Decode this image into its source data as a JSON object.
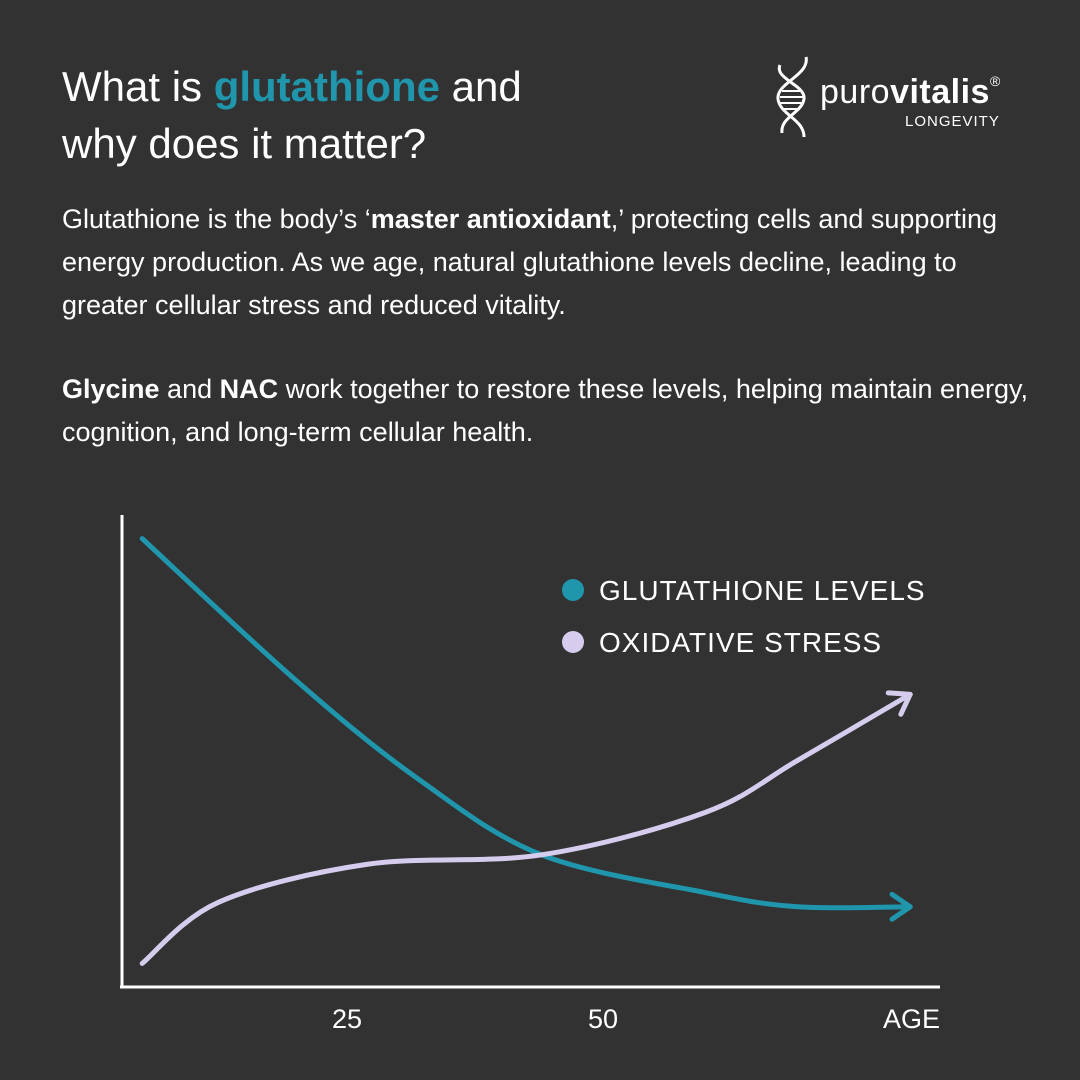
{
  "header": {
    "title_part1": "What is ",
    "title_highlight": "glutathione",
    "title_part2": " and",
    "title_line2": "why does it matter?"
  },
  "logo": {
    "brand_light": "puro",
    "brand_bold": "vitalis",
    "registered": "®",
    "tagline": "LONGEVITY"
  },
  "body": {
    "p1_a": "Glutathione is the body’s ‘",
    "p1_bold": "master antioxidant",
    "p1_b": ",’ protecting cells and supporting energy production. As we age, natural glutathione levels decline, leading to greater cellular stress and reduced vitality.",
    "p2_bold1": "Glycine",
    "p2_a": " and ",
    "p2_bold2": "NAC",
    "p2_b": " work together to restore these levels, helping maintain energy, cognition, and long-term cellular health."
  },
  "colors": {
    "background": "#323232",
    "accent": "#2096ad",
    "secondary": "#d6cdee",
    "text": "#ffffff"
  },
  "chart_data": {
    "type": "line",
    "title": "",
    "xlabel": "AGE",
    "ylabel": "",
    "x_ticks": [
      25,
      50
    ],
    "x_tick_labels": [
      "25",
      "50"
    ],
    "xlim": [
      3,
      82
    ],
    "ylim": [
      0,
      100
    ],
    "y_ticks_shown": false,
    "grid": false,
    "legend_position": "top-right",
    "series": [
      {
        "name": "GLUTATHIONE LEVELS",
        "color": "#2096ad",
        "x": [
          5,
          20,
          32,
          44,
          60,
          69,
          80
        ],
        "y": [
          95,
          65,
          44,
          28,
          20,
          17,
          17
        ]
      },
      {
        "name": "OXIDATIVE STRESS",
        "color": "#d6cdee",
        "x": [
          5,
          12.5,
          27,
          44,
          60,
          69,
          80
        ],
        "y": [
          5,
          18,
          26,
          28,
          37,
          48,
          62
        ]
      }
    ]
  }
}
